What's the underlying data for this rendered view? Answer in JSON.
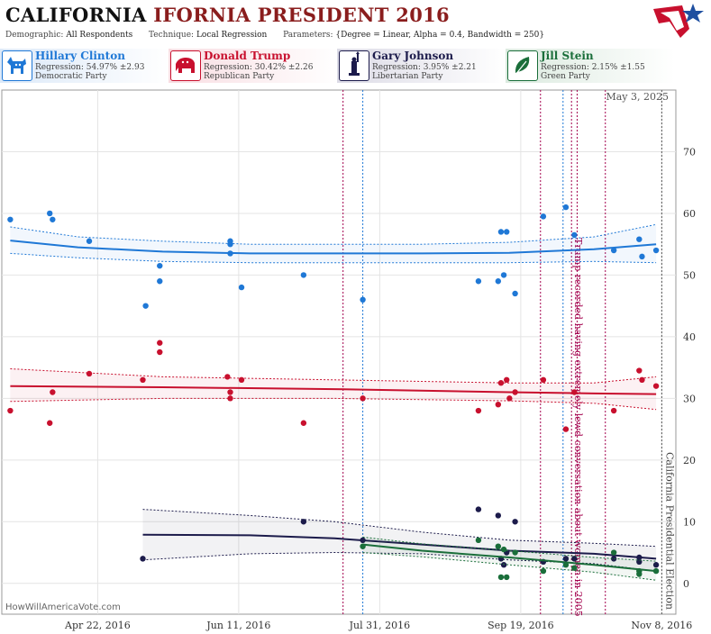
{
  "header": {
    "title_part1": "CALIFORNIA",
    "title_part2": "IFORNIA PRESIDENT 2016",
    "demographic_label": "Demographic:",
    "demographic_value": "All Respondents",
    "technique_label": "Technique:",
    "technique_value": "Local Regression",
    "parameters_label": "Parameters:",
    "parameters_value": "{Degree = Linear, Alpha = 0.4, Bandwidth = 250}"
  },
  "candidates": [
    {
      "name": "Hillary Clinton",
      "regression": "Regression: 54.97% ±2.93",
      "party": "Democratic Party",
      "color": "#1f78d6",
      "icon": "donkey-icon"
    },
    {
      "name": "Donald Trump",
      "regression": "Regression: 30.42% ±2.26",
      "party": "Republican Party",
      "color": "#c8102e",
      "icon": "elephant-icon"
    },
    {
      "name": "Gary Johnson",
      "regression": "Regression: 3.95% ±2.21",
      "party": "Libertarian Party",
      "color": "#1c1b4b",
      "icon": "statue-of-liberty-icon"
    },
    {
      "name": "Jill Stein",
      "regression": "Regression: 2.15% ±1.55",
      "party": "Green Party",
      "color": "#1a6e3a",
      "icon": "leaf-icon"
    }
  ],
  "watermark": "HowWillAmericaVote.com",
  "date_stamp": "May 3, 2025",
  "chart_data": {
    "type": "scatter",
    "x_axis": {
      "type": "date",
      "range": [
        "2016-03-19",
        "2016-11-13"
      ],
      "ticks": [
        "Apr 22, 2016",
        "Jun 11, 2016",
        "Jul 31, 2016",
        "Sep 19, 2016",
        "Nov 8, 2016"
      ],
      "tick_dates": [
        "2016-04-22",
        "2016-06-11",
        "2016-07-31",
        "2016-09-19",
        "2016-11-08"
      ]
    },
    "y_axis": {
      "range": [
        -5,
        80
      ],
      "ticks": [
        0,
        10,
        20,
        30,
        40,
        50,
        60,
        70
      ],
      "position": "right"
    },
    "grid": true,
    "series": [
      {
        "name": "Hillary Clinton",
        "color": "#1f78d6",
        "points": [
          [
            "2016-03-22",
            59
          ],
          [
            "2016-04-05",
            60
          ],
          [
            "2016-04-06",
            59
          ],
          [
            "2016-04-19",
            55.5
          ],
          [
            "2016-05-09",
            45
          ],
          [
            "2016-05-14",
            51.5
          ],
          [
            "2016-05-14",
            49
          ],
          [
            "2016-06-08",
            55.5
          ],
          [
            "2016-06-08",
            55
          ],
          [
            "2016-06-08",
            53.5
          ],
          [
            "2016-06-12",
            48
          ],
          [
            "2016-07-04",
            50
          ],
          [
            "2016-07-25",
            46
          ],
          [
            "2016-09-04",
            49
          ],
          [
            "2016-09-11",
            49
          ],
          [
            "2016-09-12",
            57
          ],
          [
            "2016-09-13",
            50
          ],
          [
            "2016-09-14",
            57
          ],
          [
            "2016-09-17",
            47
          ],
          [
            "2016-09-27",
            59.5
          ],
          [
            "2016-10-05",
            61
          ],
          [
            "2016-10-08",
            56.5
          ],
          [
            "2016-10-22",
            54
          ],
          [
            "2016-10-31",
            55.8
          ],
          [
            "2016-11-01",
            53
          ],
          [
            "2016-11-06",
            54
          ]
        ],
        "trend": [
          [
            "2016-03-22",
            55.6
          ],
          [
            "2016-04-15",
            54.5
          ],
          [
            "2016-05-15",
            53.8
          ],
          [
            "2016-06-15",
            53.5
          ],
          [
            "2016-07-15",
            53.5
          ],
          [
            "2016-08-15",
            53.5
          ],
          [
            "2016-09-15",
            53.6
          ],
          [
            "2016-10-15",
            54.2
          ],
          [
            "2016-11-06",
            55
          ]
        ],
        "band_upper": [
          [
            "2016-03-22",
            57.8
          ],
          [
            "2016-04-15",
            56.2
          ],
          [
            "2016-05-15",
            55.5
          ],
          [
            "2016-06-15",
            55
          ],
          [
            "2016-07-15",
            55
          ],
          [
            "2016-08-15",
            55
          ],
          [
            "2016-09-15",
            55.3
          ],
          [
            "2016-10-15",
            56.2
          ],
          [
            "2016-11-06",
            58.2
          ]
        ],
        "band_lower": [
          [
            "2016-03-22",
            53.5
          ],
          [
            "2016-04-15",
            52.8
          ],
          [
            "2016-05-15",
            52.2
          ],
          [
            "2016-06-15",
            52
          ],
          [
            "2016-07-15",
            52
          ],
          [
            "2016-08-15",
            52
          ],
          [
            "2016-09-15",
            52
          ],
          [
            "2016-10-15",
            52.2
          ],
          [
            "2016-11-06",
            52
          ]
        ]
      },
      {
        "name": "Donald Trump",
        "color": "#c8102e",
        "points": [
          [
            "2016-03-22",
            28
          ],
          [
            "2016-04-05",
            26
          ],
          [
            "2016-04-06",
            31
          ],
          [
            "2016-04-19",
            34
          ],
          [
            "2016-05-08",
            33
          ],
          [
            "2016-05-14",
            39
          ],
          [
            "2016-05-14",
            37.5
          ],
          [
            "2016-06-07",
            33.5
          ],
          [
            "2016-06-08",
            31
          ],
          [
            "2016-06-08",
            30
          ],
          [
            "2016-06-12",
            33
          ],
          [
            "2016-07-04",
            26
          ],
          [
            "2016-07-25",
            30
          ],
          [
            "2016-09-04",
            28
          ],
          [
            "2016-09-11",
            29
          ],
          [
            "2016-09-12",
            32.5
          ],
          [
            "2016-09-14",
            33
          ],
          [
            "2016-09-15",
            30
          ],
          [
            "2016-09-17",
            31
          ],
          [
            "2016-09-27",
            33
          ],
          [
            "2016-10-05",
            25
          ],
          [
            "2016-10-08",
            31
          ],
          [
            "2016-10-22",
            28
          ],
          [
            "2016-10-31",
            34.5
          ],
          [
            "2016-11-01",
            33
          ],
          [
            "2016-11-06",
            32
          ]
        ],
        "trend": [
          [
            "2016-03-22",
            32
          ],
          [
            "2016-05-15",
            31.8
          ],
          [
            "2016-07-15",
            31.5
          ],
          [
            "2016-09-15",
            31
          ],
          [
            "2016-10-15",
            30.8
          ],
          [
            "2016-11-06",
            30.7
          ]
        ],
        "band_upper": [
          [
            "2016-03-22",
            34.8
          ],
          [
            "2016-05-15",
            33.5
          ],
          [
            "2016-07-15",
            33
          ],
          [
            "2016-09-15",
            32.5
          ],
          [
            "2016-10-15",
            32.5
          ],
          [
            "2016-11-06",
            33.5
          ]
        ],
        "band_lower": [
          [
            "2016-03-22",
            29.5
          ],
          [
            "2016-05-15",
            30
          ],
          [
            "2016-07-15",
            30
          ],
          [
            "2016-09-15",
            29.6
          ],
          [
            "2016-10-15",
            29.2
          ],
          [
            "2016-11-06",
            28.2
          ]
        ]
      },
      {
        "name": "Gary Johnson",
        "color": "#1c1b4b",
        "points": [
          [
            "2016-05-08",
            4
          ],
          [
            "2016-07-04",
            10
          ],
          [
            "2016-07-25",
            7
          ],
          [
            "2016-09-04",
            12
          ],
          [
            "2016-09-11",
            11
          ],
          [
            "2016-09-12",
            4
          ],
          [
            "2016-09-13",
            3
          ],
          [
            "2016-09-14",
            5
          ],
          [
            "2016-09-17",
            10
          ],
          [
            "2016-09-27",
            3.5
          ],
          [
            "2016-10-05",
            4
          ],
          [
            "2016-10-08",
            4
          ],
          [
            "2016-10-22",
            4
          ],
          [
            "2016-10-31",
            3.5
          ],
          [
            "2016-10-31",
            4.2
          ],
          [
            "2016-11-06",
            3
          ]
        ],
        "trend": [
          [
            "2016-05-08",
            7.9
          ],
          [
            "2016-06-15",
            7.8
          ],
          [
            "2016-07-15",
            7.3
          ],
          [
            "2016-08-15",
            6.3
          ],
          [
            "2016-09-15",
            5.3
          ],
          [
            "2016-10-15",
            4.8
          ],
          [
            "2016-11-06",
            4
          ]
        ],
        "band_upper": [
          [
            "2016-05-08",
            12
          ],
          [
            "2016-06-15",
            11
          ],
          [
            "2016-07-15",
            10
          ],
          [
            "2016-08-15",
            8.3
          ],
          [
            "2016-09-15",
            7
          ],
          [
            "2016-10-15",
            6.5
          ],
          [
            "2016-11-06",
            6
          ]
        ],
        "band_lower": [
          [
            "2016-05-08",
            3.8
          ],
          [
            "2016-06-15",
            4.8
          ],
          [
            "2016-07-15",
            5
          ],
          [
            "2016-08-15",
            4.8
          ],
          [
            "2016-09-15",
            3.8
          ],
          [
            "2016-10-15",
            3.2
          ],
          [
            "2016-11-06",
            2
          ]
        ]
      },
      {
        "name": "Jill Stein",
        "color": "#1a6e3a",
        "points": [
          [
            "2016-07-25",
            6
          ],
          [
            "2016-09-04",
            7
          ],
          [
            "2016-09-11",
            6
          ],
          [
            "2016-09-12",
            1
          ],
          [
            "2016-09-13",
            5.5
          ],
          [
            "2016-09-14",
            1
          ],
          [
            "2016-09-17",
            5
          ],
          [
            "2016-09-27",
            2
          ],
          [
            "2016-10-05",
            3
          ],
          [
            "2016-10-08",
            2.5
          ],
          [
            "2016-10-22",
            5
          ],
          [
            "2016-10-31",
            2
          ],
          [
            "2016-10-31",
            1.5
          ],
          [
            "2016-11-06",
            2
          ]
        ],
        "trend": [
          [
            "2016-07-25",
            6.3
          ],
          [
            "2016-08-15",
            5.3
          ],
          [
            "2016-09-15",
            4.2
          ],
          [
            "2016-10-15",
            3
          ],
          [
            "2016-11-06",
            2
          ]
        ],
        "band_upper": [
          [
            "2016-07-25",
            7.5
          ],
          [
            "2016-08-15",
            6.4
          ],
          [
            "2016-09-15",
            5.3
          ],
          [
            "2016-10-15",
            4.2
          ],
          [
            "2016-11-06",
            3.6
          ]
        ],
        "band_lower": [
          [
            "2016-07-25",
            5
          ],
          [
            "2016-08-15",
            4.3
          ],
          [
            "2016-09-15",
            3
          ],
          [
            "2016-10-15",
            1.8
          ],
          [
            "2016-11-06",
            0.5
          ]
        ]
      }
    ],
    "events": [
      {
        "date": "2016-07-18",
        "color": "#a3004d",
        "label": ""
      },
      {
        "date": "2016-07-25",
        "color": "#1f78d6",
        "label": ""
      },
      {
        "date": "2016-09-26",
        "color": "#a3004d",
        "label": ""
      },
      {
        "date": "2016-10-04",
        "color": "#1f78d6",
        "label": ""
      },
      {
        "date": "2016-10-07",
        "color": "#a3004d",
        "label": "Trump recorded having extremely lewd conversation about women in 2005"
      },
      {
        "date": "2016-10-09",
        "color": "#a3004d",
        "label": ""
      },
      {
        "date": "2016-10-19",
        "color": "#a3004d",
        "label": ""
      },
      {
        "date": "2016-11-08",
        "color": "#555555",
        "label": "California Presidential Election"
      }
    ]
  }
}
